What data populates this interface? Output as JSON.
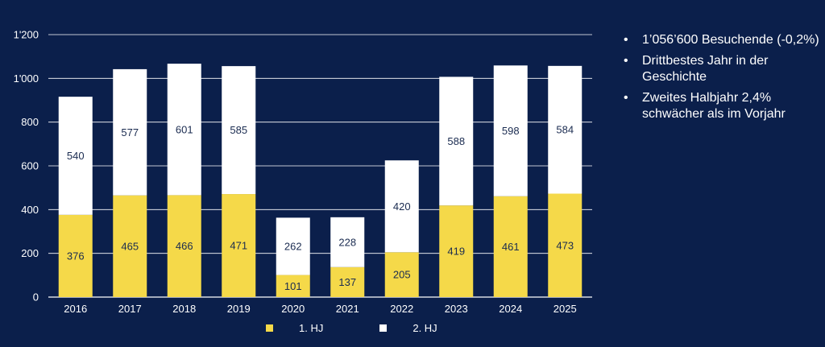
{
  "chart_data": {
    "type": "bar",
    "stacked": true,
    "categories": [
      "2016",
      "2017",
      "2018",
      "2019",
      "2020",
      "2021",
      "2022",
      "2023",
      "2024",
      "2025"
    ],
    "series": [
      {
        "name": "1. HJ",
        "color": "#f5d949",
        "values": [
          376,
          465,
          466,
          471,
          101,
          137,
          205,
          419,
          461,
          473
        ]
      },
      {
        "name": "2. HJ",
        "color": "#ffffff",
        "values": [
          540,
          577,
          601,
          585,
          262,
          228,
          420,
          588,
          598,
          584
        ]
      }
    ],
    "ylim": [
      0,
      1200
    ],
    "yticks": [
      0,
      200,
      400,
      600,
      800,
      1000,
      1200
    ],
    "ytick_labels": [
      "0",
      "200",
      "400",
      "600",
      "800",
      "1'000",
      "1'200"
    ],
    "grid": true,
    "legend_position": "bottom"
  },
  "bullets": [
    "1’056’600 Besuchende (-0,2%)",
    "Drittbestes Jahr in der Geschichte",
    "Zweites Halbjahr 2,4% schwächer als im Vorjahr"
  ],
  "bullet_symbol": "•",
  "colors": {
    "background": "#0b1f4b",
    "grid": "#ffffff",
    "label": "#1a2b50"
  }
}
